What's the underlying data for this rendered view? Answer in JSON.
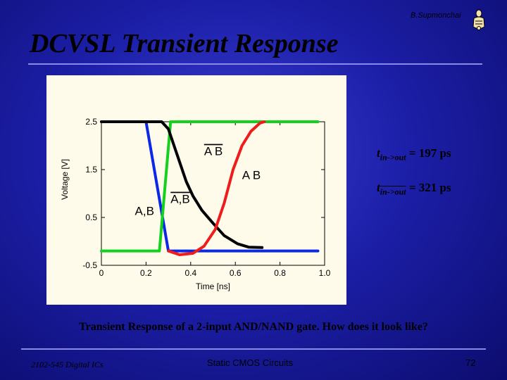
{
  "slide": {
    "author": "B.Supmonchai",
    "title": "DCVSL Transient Response",
    "caption": "Transient Response of a 2-input AND/NAND gate. How does it look like?",
    "footer_left": "2102-545 Digital ICs",
    "footer_center": "Static CMOS Circuits",
    "page_number": "72"
  },
  "annotations": {
    "t1_prefix": "t",
    "t1_sub": "in->out",
    "t1_value": " = 197 ps",
    "t2_prefix": "t",
    "t2_sub": "in->out",
    "t2_value": " = 321 ps"
  },
  "chart_data": {
    "type": "line",
    "xlabel": "Time [ns]",
    "ylabel": "Voltage [V]",
    "xlim": [
      0,
      1.0
    ],
    "ylim": [
      -0.5,
      2.5
    ],
    "x_ticks": [
      "0",
      "0.2",
      "0.4",
      "0.6",
      "0.8",
      "1.0"
    ],
    "y_ticks": [
      "2.5",
      "1.5",
      "0.5",
      "-0.5"
    ],
    "grid": false,
    "colors": {
      "blue": "#0a28e6",
      "green": "#12d21e",
      "black": "#000000",
      "red": "#ee1c1c"
    },
    "labels": [
      {
        "text": "A B",
        "overline": true,
        "x": 0.46,
        "y": 1.8
      },
      {
        "text": "A B",
        "overline": false,
        "x": 0.63,
        "y": 1.3
      },
      {
        "text": "A,B",
        "overline": false,
        "x": 0.15,
        "y": 0.55
      },
      {
        "text": "A,B",
        "overline": true,
        "x": 0.31,
        "y": 0.8
      }
    ],
    "series": [
      {
        "color": "blue",
        "values": [
          [
            0.0,
            2.5
          ],
          [
            0.2,
            2.5
          ],
          [
            0.3,
            -0.2
          ],
          [
            0.97,
            -0.2
          ]
        ]
      },
      {
        "color": "green",
        "values": [
          [
            0.0,
            -0.2
          ],
          [
            0.26,
            -0.2
          ],
          [
            0.31,
            2.5
          ],
          [
            0.97,
            2.5
          ]
        ]
      },
      {
        "color": "black",
        "values": [
          [
            0.0,
            2.5
          ],
          [
            0.27,
            2.5
          ],
          [
            0.3,
            2.35
          ],
          [
            0.34,
            1.8
          ],
          [
            0.38,
            1.25
          ],
          [
            0.41,
            0.95
          ],
          [
            0.45,
            0.65
          ],
          [
            0.5,
            0.38
          ],
          [
            0.55,
            0.12
          ],
          [
            0.61,
            -0.05
          ],
          [
            0.66,
            -0.12
          ],
          [
            0.72,
            -0.13
          ]
        ]
      },
      {
        "color": "red",
        "values": [
          [
            0.3,
            -0.2
          ],
          [
            0.35,
            -0.28
          ],
          [
            0.41,
            -0.25
          ],
          [
            0.46,
            -0.1
          ],
          [
            0.51,
            0.25
          ],
          [
            0.55,
            0.8
          ],
          [
            0.59,
            1.5
          ],
          [
            0.63,
            2.0
          ],
          [
            0.67,
            2.3
          ],
          [
            0.71,
            2.47
          ],
          [
            0.73,
            2.5
          ]
        ]
      }
    ]
  }
}
